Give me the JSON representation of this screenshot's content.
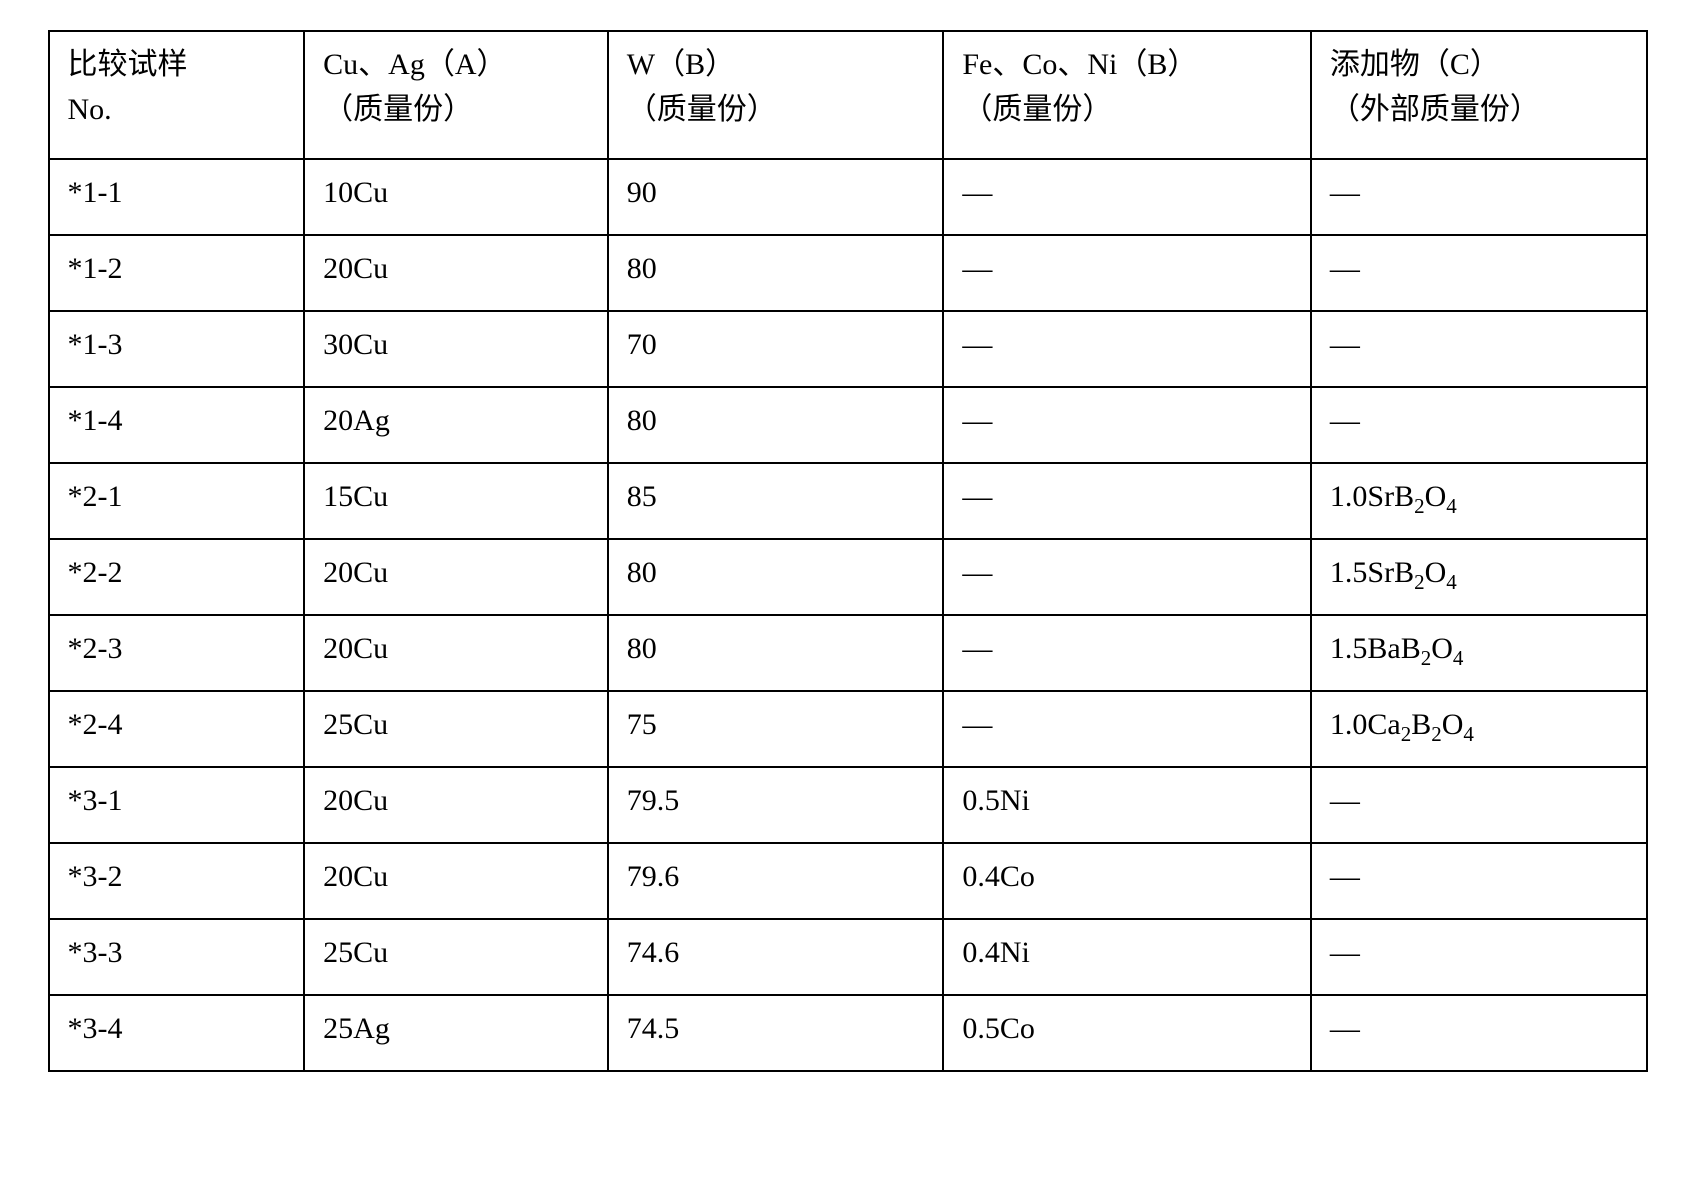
{
  "table": {
    "columns": [
      {
        "line1": "比较试样",
        "line2": "No."
      },
      {
        "line1": "Cu、Ag（A）",
        "line2": "（质量份）"
      },
      {
        "line1": "W（B）",
        "line2": "（质量份）"
      },
      {
        "line1": "Fe、Co、Ni（B）",
        "line2": "（质量份）"
      },
      {
        "line1": "添加物（C）",
        "line2": "（外部质量份）"
      }
    ],
    "rows": [
      {
        "no": "*1-1",
        "cuag": "10Cu",
        "w": "90",
        "feconi": "—",
        "additive": "—"
      },
      {
        "no": "*1-2",
        "cuag": "20Cu",
        "w": "80",
        "feconi": "—",
        "additive": "—"
      },
      {
        "no": "*1-3",
        "cuag": "30Cu",
        "w": "70",
        "feconi": "—",
        "additive": "—"
      },
      {
        "no": "*1-4",
        "cuag": "20Ag",
        "w": "80",
        "feconi": "—",
        "additive": "—"
      },
      {
        "no": "*2-1",
        "cuag": "15Cu",
        "w": "85",
        "feconi": "—",
        "additive_html": "1.0SrB<sub>2</sub>O<sub>4</sub>"
      },
      {
        "no": "*2-2",
        "cuag": "20Cu",
        "w": "80",
        "feconi": "—",
        "additive_html": "1.5SrB<sub>2</sub>O<sub>4</sub>"
      },
      {
        "no": "*2-3",
        "cuag": "20Cu",
        "w": "80",
        "feconi": "—",
        "additive_html": "1.5BaB<sub>2</sub>O<sub>4</sub>"
      },
      {
        "no": "*2-4",
        "cuag": "25Cu",
        "w": "75",
        "feconi": "—",
        "additive_html": "1.0Ca<sub>2</sub>B<sub>2</sub>O<sub>4</sub>"
      },
      {
        "no": "*3-1",
        "cuag": "20Cu",
        "w": "79.5",
        "feconi": "0.5Ni",
        "additive": "—"
      },
      {
        "no": "*3-2",
        "cuag": "20Cu",
        "w": "79.6",
        "feconi": "0.4Co",
        "additive": "—"
      },
      {
        "no": "*3-3",
        "cuag": "25Cu",
        "w": "74.6",
        "feconi": "0.4Ni",
        "additive": "—"
      },
      {
        "no": "*3-4",
        "cuag": "25Ag",
        "w": "74.5",
        "feconi": "0.5Co",
        "additive": "—"
      }
    ],
    "border_color": "#000000",
    "background_color": "#ffffff",
    "text_color": "#000000",
    "font_size": 30,
    "col_widths": [
      "16%",
      "19%",
      "21%",
      "23%",
      "21%"
    ]
  }
}
